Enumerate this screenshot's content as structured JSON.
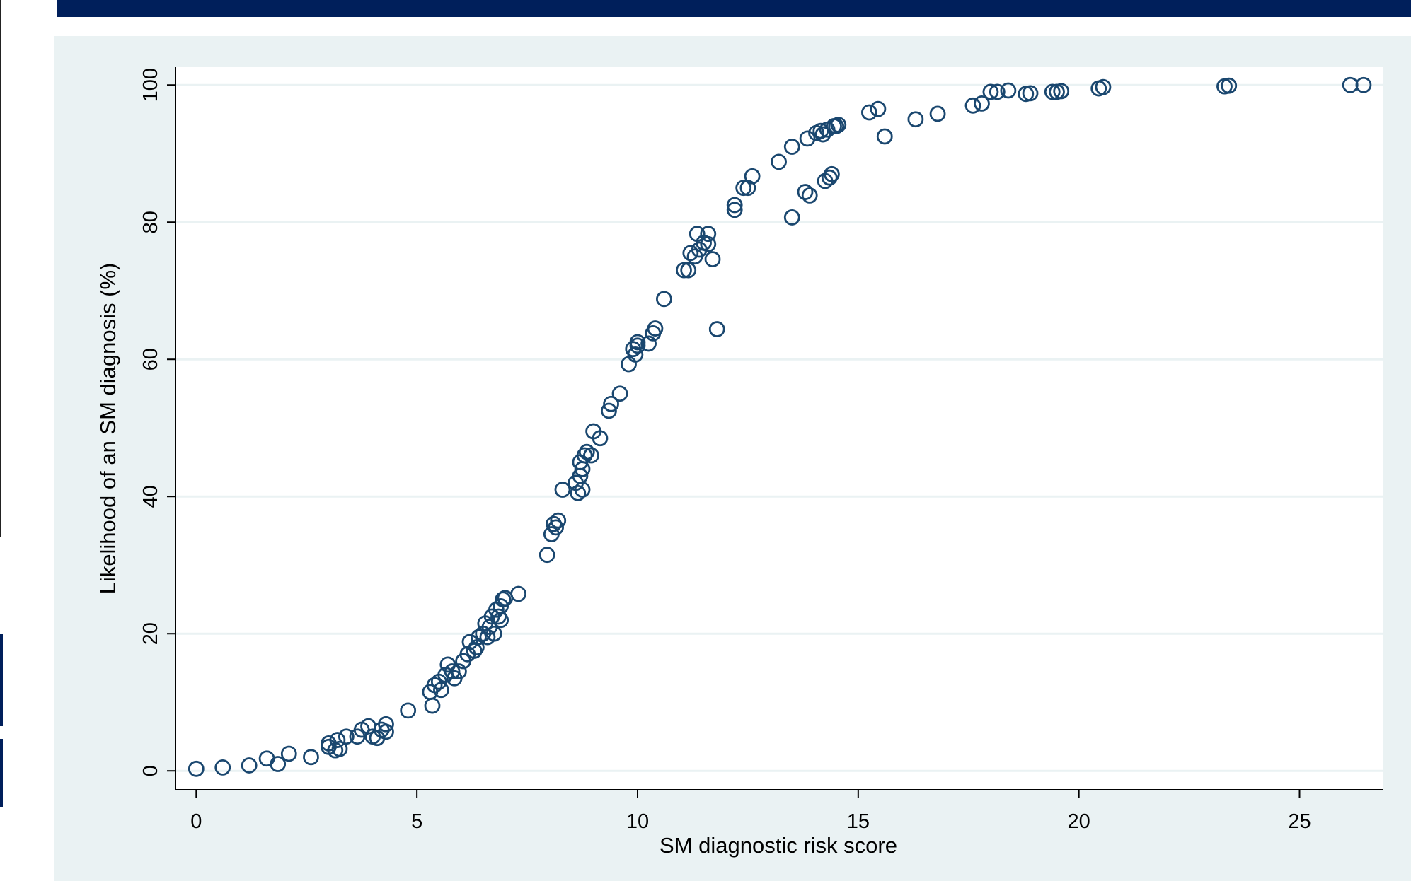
{
  "chart_data": {
    "type": "scatter",
    "xlabel": "SM diagnostic risk score",
    "ylabel": "Likelihood of an SM diagnosis (%)",
    "color": "#1a476f",
    "grid": true,
    "xlim": [
      -0.47,
      26.9
    ],
    "ylim": [
      -2.76,
      102.6
    ],
    "xticks": [
      0,
      5,
      10,
      15,
      20,
      25
    ],
    "yticks": [
      0,
      20,
      40,
      60,
      80,
      100
    ],
    "x": [
      0,
      0.6,
      1.2,
      1.6,
      1.85,
      2.1,
      2.6,
      3,
      3,
      3.2,
      3.15,
      3.25,
      3.4,
      3.65,
      3.75,
      3.9,
      4,
      4.1,
      4.2,
      4.3,
      4.3,
      4.8,
      5.3,
      5.35,
      5.4,
      5.5,
      5.55,
      5.65,
      5.7,
      5.8,
      5.85,
      5.95,
      6.05,
      6.15,
      6.2,
      6.3,
      6.35,
      6.4,
      6.5,
      6.55,
      6.6,
      6.65,
      6.7,
      6.75,
      6.8,
      6.85,
      6.9,
      6.95,
      6.9,
      7,
      7.3,
      7.95,
      8.05,
      8.1,
      8.15,
      8.2,
      8.3,
      8.6,
      8.65,
      8.7,
      8.7,
      8.75,
      8.75,
      8.8,
      8.85,
      8.95,
      9,
      9.15,
      9.35,
      9.4,
      9.6,
      9.8,
      9.9,
      9.95,
      10,
      10,
      10.25,
      10.35,
      10.4,
      10.6,
      11.05,
      11.15,
      11.2,
      11.3,
      11.35,
      11.4,
      11.5,
      11.6,
      11.6,
      11.7,
      11.8,
      12.2,
      12.2,
      12.4,
      12.5,
      12.6,
      13.2,
      13.5,
      13.5,
      13.8,
      13.9,
      13.85,
      14.05,
      14.15,
      14.2,
      14.25,
      14.3,
      14.35,
      14.4,
      14.45,
      14.5,
      14.55,
      15.25,
      15.45,
      15.6,
      16.3,
      16.8,
      17.6,
      17.8,
      18,
      18.15,
      18.4,
      18.8,
      18.9,
      19.4,
      19.5,
      19.6,
      20.45,
      20.55,
      23.3,
      23.4,
      26.15,
      26.45
    ],
    "y": [
      0.3,
      0.5,
      0.8,
      1.8,
      1,
      2.5,
      2,
      3.5,
      4,
      4.5,
      3,
      3.2,
      5,
      5,
      6,
      6.5,
      5,
      4.8,
      6,
      6.8,
      5.7,
      8.8,
      11.5,
      9.5,
      12.5,
      13,
      11.8,
      14,
      15.5,
      14.5,
      13.5,
      14.5,
      16,
      17,
      18.8,
      17.5,
      18,
      19.5,
      20,
      21.5,
      19.5,
      21,
      22.5,
      20,
      23.5,
      22.5,
      24,
      25,
      22,
      25.2,
      25.8,
      31.5,
      34.5,
      36,
      35.5,
      36.5,
      41,
      42,
      40.5,
      43,
      45,
      41,
      44,
      46,
      46.5,
      46,
      49.5,
      48.5,
      52.5,
      53.5,
      55,
      59.3,
      61.5,
      60.7,
      62.5,
      62,
      62.3,
      63.8,
      64.5,
      68.8,
      73,
      73,
      75.5,
      75,
      78.3,
      76,
      77,
      76.8,
      78.3,
      74.6,
      64.4,
      82.5,
      81.8,
      85,
      85,
      86.7,
      88.8,
      80.7,
      91,
      84.4,
      83.9,
      92.2,
      93,
      93.3,
      92.8,
      86,
      93.5,
      86.5,
      87,
      94,
      94,
      94.2,
      96,
      96.5,
      92.5,
      95,
      95.8,
      97,
      97.3,
      99,
      99,
      99.2,
      98.7,
      98.8,
      99,
      99,
      99.1,
      99.5,
      99.7,
      99.8,
      99.9,
      100,
      100
    ]
  }
}
